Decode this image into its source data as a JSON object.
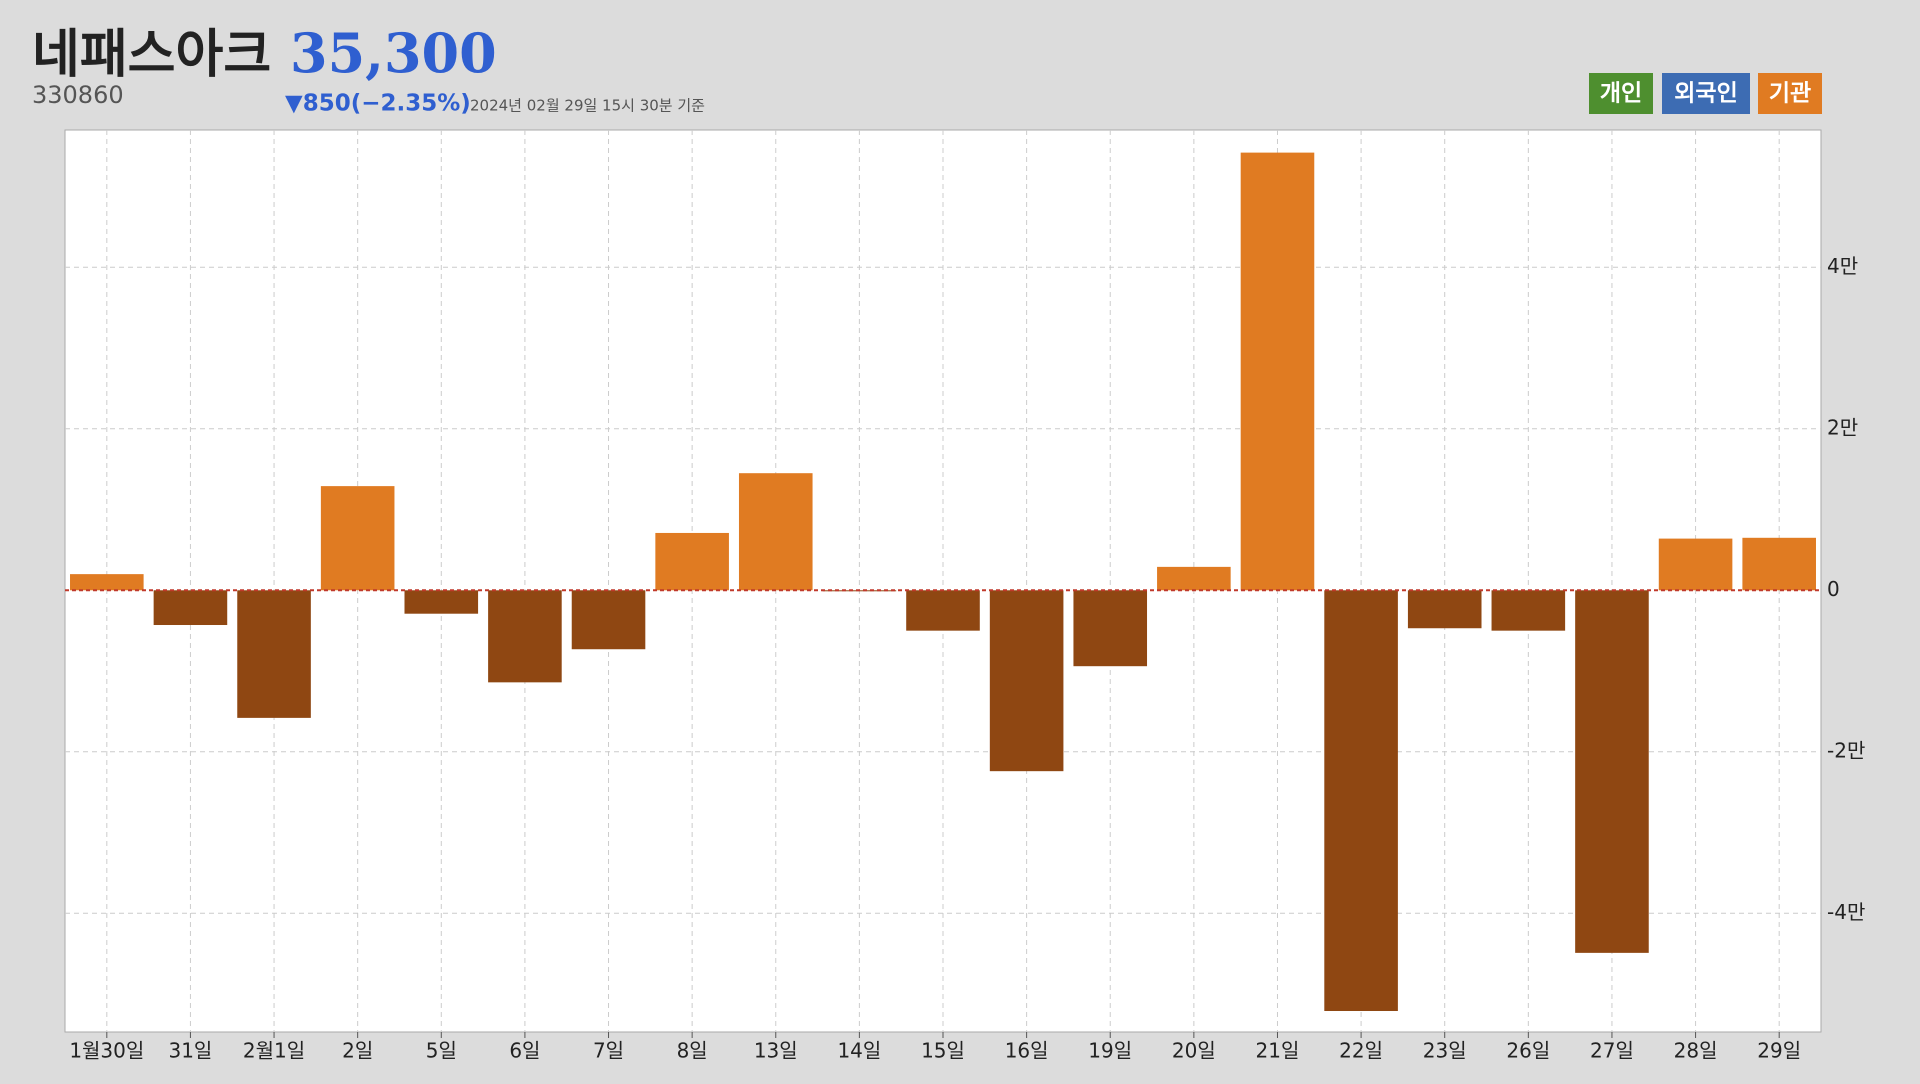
{
  "header": {
    "title": "네패스아크",
    "price": "35,300",
    "code": "330860",
    "change": "▼850(−2.35%)",
    "timestamp": "2024년 02월 29일 15시 30분 기준",
    "tabs": [
      {
        "label": "개인",
        "color": "#4e8f2f"
      },
      {
        "label": "외국인",
        "color": "#3d6cb3"
      },
      {
        "label": "기관",
        "color": "#e07b22"
      }
    ]
  },
  "chart_data": {
    "type": "bar",
    "categories": [
      "1월30일",
      "31일",
      "2월1일",
      "2일",
      "5일",
      "6일",
      "7일",
      "8일",
      "13일",
      "14일",
      "15일",
      "16일",
      "19일",
      "20일",
      "21일",
      "22일",
      "23일",
      "26일",
      "27일",
      "28일",
      "29일"
    ],
    "values": [
      2000,
      -4300,
      -15800,
      12900,
      -2900,
      -11400,
      -7300,
      7100,
      14500,
      -100,
      -5000,
      -22400,
      -9400,
      2900,
      54200,
      -52100,
      -4700,
      -5000,
      -44900,
      6400,
      6500
    ],
    "color_positive": "#e07b22",
    "color_negative": "#8f4712",
    "zero_line_color": "#c0392b",
    "ylim": [
      -54700,
      57000
    ],
    "yticks": [
      {
        "value": -40000,
        "label": "-4만"
      },
      {
        "value": -20000,
        "label": "-2만"
      },
      0,
      {
        "value": 20000,
        "label": "2만"
      },
      {
        "value": 40000,
        "label": "4만"
      }
    ],
    "grid": true
  }
}
